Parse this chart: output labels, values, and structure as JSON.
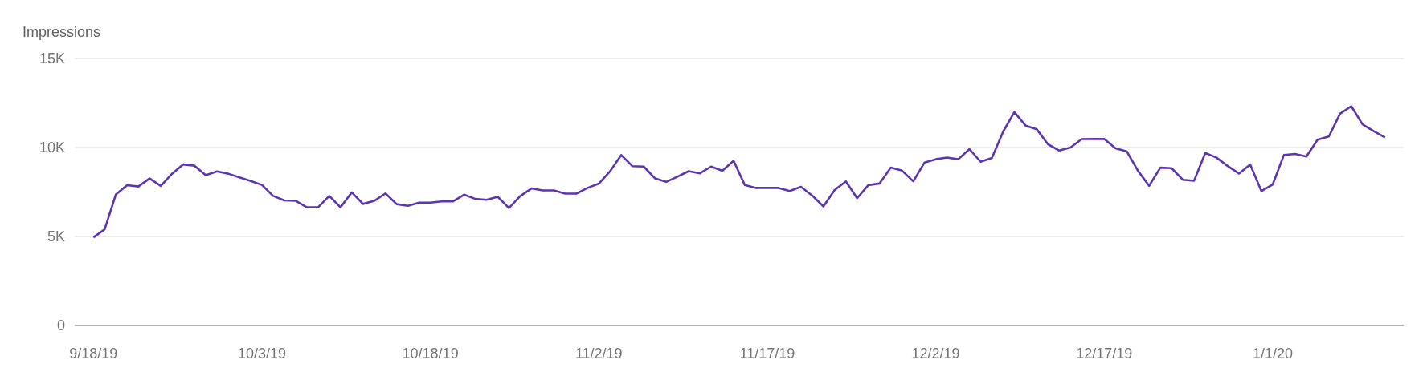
{
  "chart_data": {
    "type": "line",
    "ylabel": "Impressions",
    "x": [
      "2019-09-18",
      "2019-09-19",
      "2019-09-20",
      "2019-09-21",
      "2019-09-22",
      "2019-09-23",
      "2019-09-24",
      "2019-09-25",
      "2019-09-26",
      "2019-09-27",
      "2019-09-28",
      "2019-09-29",
      "2019-09-30",
      "2019-10-01",
      "2019-10-02",
      "2019-10-03",
      "2019-10-04",
      "2019-10-05",
      "2019-10-06",
      "2019-10-07",
      "2019-10-08",
      "2019-10-09",
      "2019-10-10",
      "2019-10-11",
      "2019-10-12",
      "2019-10-13",
      "2019-10-14",
      "2019-10-15",
      "2019-10-16",
      "2019-10-17",
      "2019-10-18",
      "2019-10-19",
      "2019-10-20",
      "2019-10-21",
      "2019-10-22",
      "2019-10-23",
      "2019-10-24",
      "2019-10-25",
      "2019-10-26",
      "2019-10-27",
      "2019-10-28",
      "2019-10-29",
      "2019-10-30",
      "2019-10-31",
      "2019-11-01",
      "2019-11-02",
      "2019-11-03",
      "2019-11-04",
      "2019-11-05",
      "2019-11-06",
      "2019-11-07",
      "2019-11-08",
      "2019-11-09",
      "2019-11-10",
      "2019-11-11",
      "2019-11-12",
      "2019-11-13",
      "2019-11-14",
      "2019-11-15",
      "2019-11-16",
      "2019-11-17",
      "2019-11-18",
      "2019-11-19",
      "2019-11-20",
      "2019-11-21",
      "2019-11-22",
      "2019-11-23",
      "2019-11-24",
      "2019-11-25",
      "2019-11-26",
      "2019-11-27",
      "2019-11-28",
      "2019-11-29",
      "2019-11-30",
      "2019-12-01",
      "2019-12-02",
      "2019-12-03",
      "2019-12-04",
      "2019-12-05",
      "2019-12-06",
      "2019-12-07",
      "2019-12-08",
      "2019-12-09",
      "2019-12-10",
      "2019-12-11",
      "2019-12-12",
      "2019-12-13",
      "2019-12-14",
      "2019-12-15",
      "2019-12-16",
      "2019-12-17",
      "2019-12-18",
      "2019-12-19",
      "2019-12-20",
      "2019-12-21",
      "2019-12-22",
      "2019-12-23",
      "2019-12-24",
      "2019-12-25",
      "2019-12-26",
      "2019-12-27",
      "2019-12-28",
      "2019-12-29",
      "2019-12-30",
      "2019-12-31",
      "2020-01-01",
      "2020-01-02",
      "2020-01-03",
      "2020-01-04",
      "2020-01-05",
      "2020-01-06",
      "2020-01-07",
      "2020-01-08",
      "2020-01-09",
      "2020-01-10",
      "2020-01-11"
    ],
    "series": [
      {
        "color": "#5e35b1",
        "values": [
          4950,
          5400,
          7370,
          7880,
          7810,
          8260,
          7840,
          8530,
          9050,
          8980,
          8450,
          8660,
          8530,
          8320,
          8120,
          7900,
          7280,
          7030,
          7010,
          6640,
          6640,
          7280,
          6640,
          7480,
          6830,
          7000,
          7420,
          6820,
          6720,
          6900,
          6900,
          6970,
          6970,
          7350,
          7110,
          7060,
          7230,
          6600,
          7270,
          7700,
          7590,
          7590,
          7410,
          7410,
          7730,
          7970,
          8660,
          9580,
          8950,
          8930,
          8270,
          8070,
          8360,
          8670,
          8550,
          8930,
          8690,
          9260,
          7890,
          7730,
          7730,
          7730,
          7560,
          7790,
          7300,
          6690,
          7610,
          8100,
          7150,
          7890,
          7980,
          8870,
          8700,
          8100,
          9160,
          9340,
          9440,
          9340,
          9910,
          9200,
          9410,
          10890,
          11990,
          11230,
          11020,
          10180,
          9830,
          10000,
          10470,
          10480,
          10480,
          9950,
          9790,
          8700,
          7850,
          8870,
          8840,
          8190,
          8130,
          9700,
          9430,
          8960,
          8540,
          9040,
          7550,
          7920,
          9580,
          9640,
          9490,
          10440,
          10620,
          11900,
          12320,
          11300,
          10920,
          10570
        ]
      }
    ],
    "xlim": [
      "2019-09-16T08:00",
      "2020-01-12T16:00"
    ],
    "xticks": [
      {
        "value": "2019-09-18",
        "label": "9/18/19"
      },
      {
        "value": "2019-10-03",
        "label": "10/3/19"
      },
      {
        "value": "2019-10-18",
        "label": "10/18/19"
      },
      {
        "value": "2019-11-02",
        "label": "11/2/19"
      },
      {
        "value": "2019-11-17",
        "label": "11/17/19"
      },
      {
        "value": "2019-12-02",
        "label": "12/2/19"
      },
      {
        "value": "2019-12-17",
        "label": "12/17/19"
      },
      {
        "value": "2020-01-01",
        "label": "1/1/20"
      }
    ],
    "ylim": [
      0,
      15000
    ],
    "yticks": [
      0,
      {
        "value": 5000,
        "label": "5K"
      },
      {
        "value": 10000,
        "label": "10K"
      },
      {
        "value": 15000,
        "label": "15K"
      }
    ],
    "grid": "y"
  }
}
